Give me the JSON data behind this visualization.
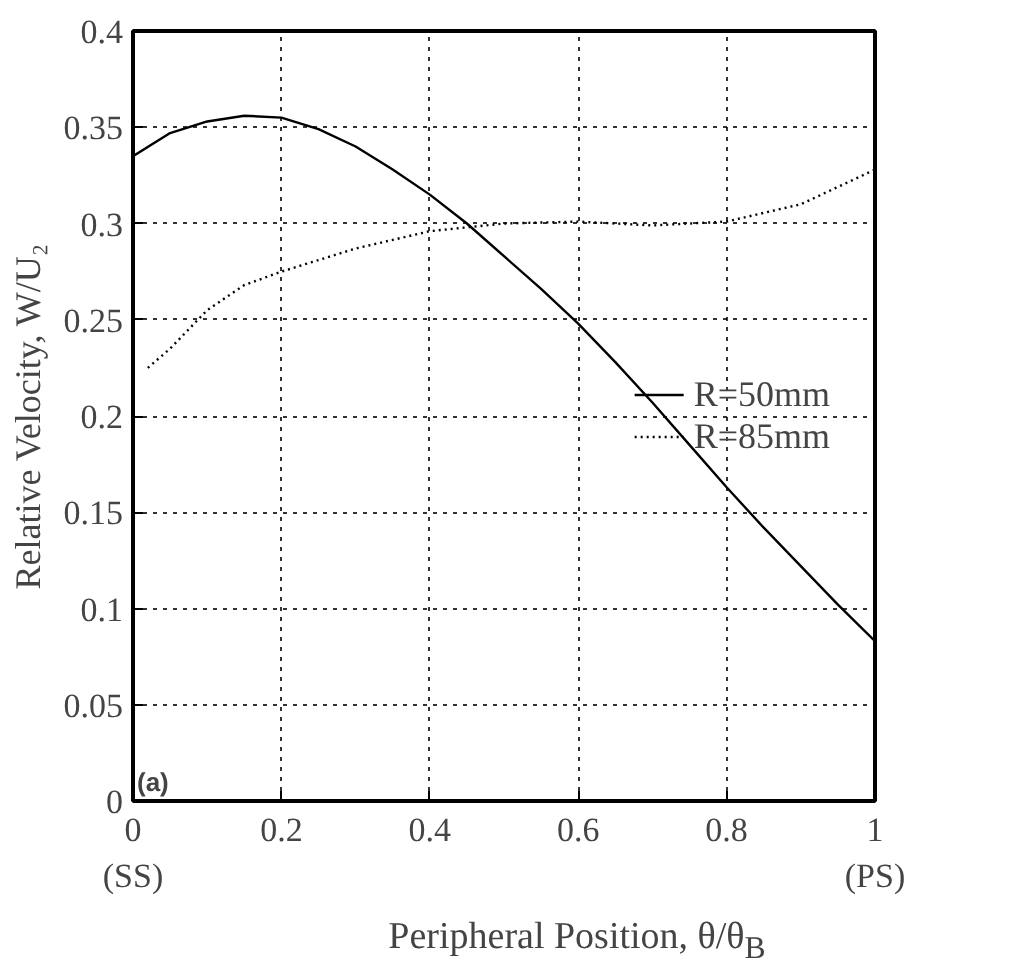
{
  "chart_data": {
    "type": "line",
    "xlabel": "Peripheral Position, θ/θ$_{B}$",
    "ylabel": "Relative Velocity, W/U₂",
    "xlim": [
      0,
      1
    ],
    "ylim": [
      0,
      0.4
    ],
    "xticks": [
      {
        "value": 0,
        "label": "0\n(SS)"
      },
      0.2,
      0.4,
      0.6,
      0.8,
      {
        "value": 1,
        "label": "1\n(PS)"
      }
    ],
    "yticks": [
      0,
      0.05,
      0.1,
      0.15,
      0.2,
      0.25,
      0.3,
      0.35,
      0.4
    ],
    "grid": true,
    "legend": "right",
    "annotations": [
      "(a)"
    ],
    "series": [
      {
        "name": "R=50mm",
        "color": "#000000",
        "line_style": "solid",
        "x": [
          0,
          0.05,
          0.1,
          0.15,
          0.2,
          0.25,
          0.3,
          0.35,
          0.4,
          0.45,
          0.5,
          0.55,
          0.6,
          0.65,
          0.7,
          0.75,
          0.8,
          0.85,
          0.9,
          0.95,
          1
        ],
        "values": [
          0.335,
          0.347,
          0.353,
          0.356,
          0.355,
          0.349,
          0.34,
          0.328,
          0.315,
          0.3,
          0.283,
          0.266,
          0.248,
          0.228,
          0.207,
          0.185,
          0.163,
          0.142,
          0.122,
          0.102,
          0.083
        ]
      },
      {
        "name": "R=85mm",
        "color": "#000000",
        "line_style": "dotted",
        "x": [
          0.02,
          0.05,
          0.1,
          0.15,
          0.2,
          0.3,
          0.4,
          0.5,
          0.6,
          0.7,
          0.8,
          0.9,
          1
        ],
        "values": [
          0.225,
          0.235,
          0.255,
          0.268,
          0.275,
          0.287,
          0.296,
          0.3,
          0.301,
          0.299,
          0.301,
          0.31,
          0.328
        ]
      }
    ]
  }
}
